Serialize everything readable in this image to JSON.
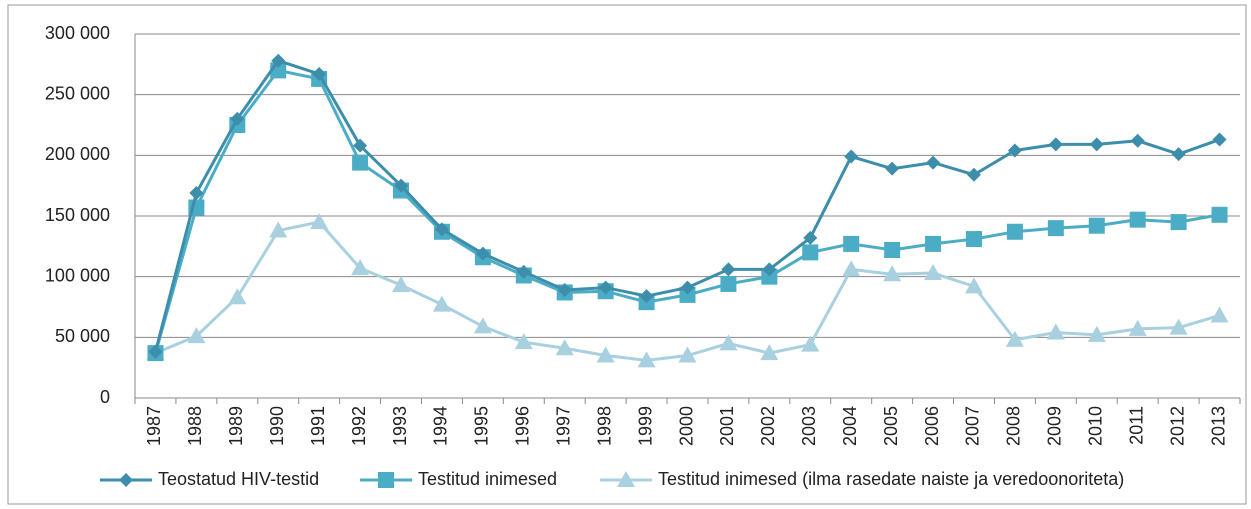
{
  "chart_data": {
    "type": "line",
    "categories": [
      "1987",
      "1988",
      "1989",
      "1990",
      "1991",
      "1992",
      "1993",
      "1994",
      "1995",
      "1996",
      "1997",
      "1998",
      "1999",
      "2000",
      "2001",
      "2002",
      "2003",
      "2004",
      "2005",
      "2006",
      "2007",
      "2008",
      "2009",
      "2010",
      "2011",
      "2012",
      "2013"
    ],
    "series": [
      {
        "name": "Teostatud HIV-testid",
        "color": "#3d8eab",
        "marker": "diamond",
        "values": [
          38000,
          169000,
          230000,
          278000,
          267000,
          208000,
          175000,
          139000,
          119000,
          104000,
          89000,
          91000,
          84000,
          91000,
          106000,
          106000,
          132000,
          199000,
          189000,
          194000,
          184000,
          204000,
          209000,
          209000,
          212000,
          201000,
          213000
        ]
      },
      {
        "name": "Testitud inimesed",
        "color": "#4bacc6",
        "marker": "square",
        "values": [
          37000,
          157000,
          225000,
          270000,
          263000,
          194000,
          171000,
          137000,
          116000,
          101000,
          87000,
          88000,
          79000,
          85000,
          94000,
          100000,
          120000,
          127000,
          122000,
          127000,
          131000,
          137000,
          140000,
          142000,
          147000,
          145000,
          151000
        ]
      },
      {
        "name": "Testitud inimesed (ilma rasedate naiste ja veredoonoriteta)",
        "color": "#a8d0df",
        "marker": "triangle",
        "values": [
          37000,
          51000,
          83000,
          138000,
          145000,
          107000,
          93000,
          77000,
          59000,
          46000,
          41000,
          35000,
          31000,
          35000,
          45000,
          37000,
          44000,
          106000,
          102000,
          103000,
          92000,
          48000,
          54000,
          52000,
          57000,
          58000,
          68000
        ]
      }
    ],
    "ylim": [
      0,
      300000
    ],
    "yticks": [
      0,
      {
        "value": 50000,
        "label": "50 000"
      },
      {
        "value": 100000,
        "label": "100 000"
      },
      {
        "value": 150000,
        "label": "150 000"
      },
      {
        "value": 200000,
        "label": "200 000"
      },
      {
        "value": 250000,
        "label": "250 000"
      },
      {
        "value": 300000,
        "label": "300 000"
      }
    ],
    "grid": true,
    "legend": "bottom"
  }
}
